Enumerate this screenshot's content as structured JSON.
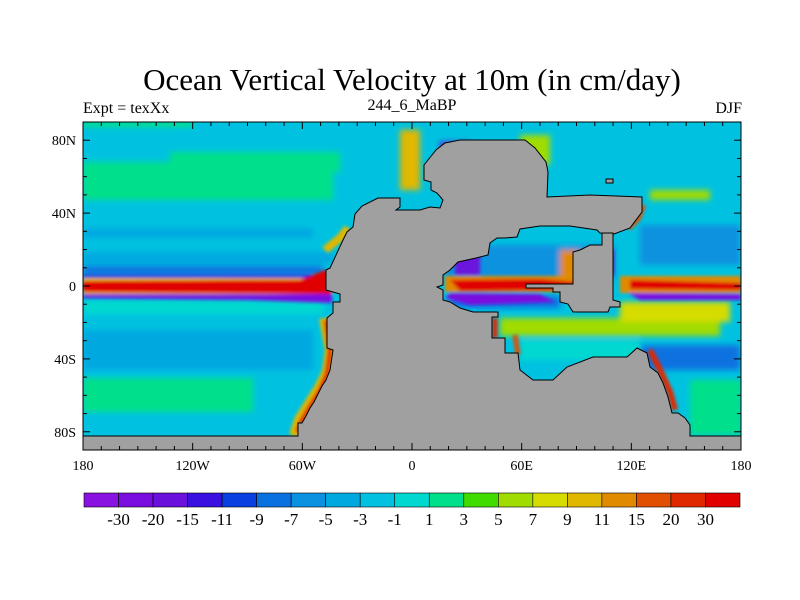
{
  "title": "Ocean Vertical Velocity at 10m (in cm/day)",
  "subtitle_left": "Expt = texXx",
  "subtitle_center": "244_6_MaBP",
  "subtitle_right": "DJF",
  "chart_data": {
    "type": "heatmap",
    "title": "Ocean Vertical Velocity at 10m (in cm/day)",
    "units": "cm/day",
    "x_axis": {
      "range": [
        -180,
        180
      ],
      "tick_values": [
        -180,
        -120,
        -60,
        0,
        60,
        120,
        180
      ],
      "tick_labels": [
        "180",
        "120W",
        "60W",
        "0",
        "60E",
        "120E",
        "180"
      ]
    },
    "y_axis": {
      "range": [
        -90,
        90
      ],
      "tick_values": [
        80,
        40,
        0,
        -40,
        -80
      ],
      "tick_labels": [
        "80N",
        "40N",
        "0",
        "40S",
        "80S"
      ]
    },
    "land_color": "#a0a0a0",
    "colorbar": {
      "placement": "bottom",
      "levels": [
        "-30",
        "-20",
        "-15",
        "-11",
        "-9",
        "-7",
        "-5",
        "-3",
        "-1",
        "1",
        "3",
        "5",
        "7",
        "9",
        "11",
        "15",
        "20",
        "30"
      ],
      "colors": [
        "#8a12e0",
        "#7a0ee0",
        "#6a12dc",
        "#3a10e0",
        "#0a40e0",
        "#0a72e0",
        "#0a92e0",
        "#00a8e0",
        "#00c2e0",
        "#00d8d0",
        "#00e08a",
        "#40dc00",
        "#a0dc00",
        "#d6dc00",
        "#e0b800",
        "#e08a00",
        "#e05000",
        "#e02800",
        "#e00000"
      ]
    }
  }
}
